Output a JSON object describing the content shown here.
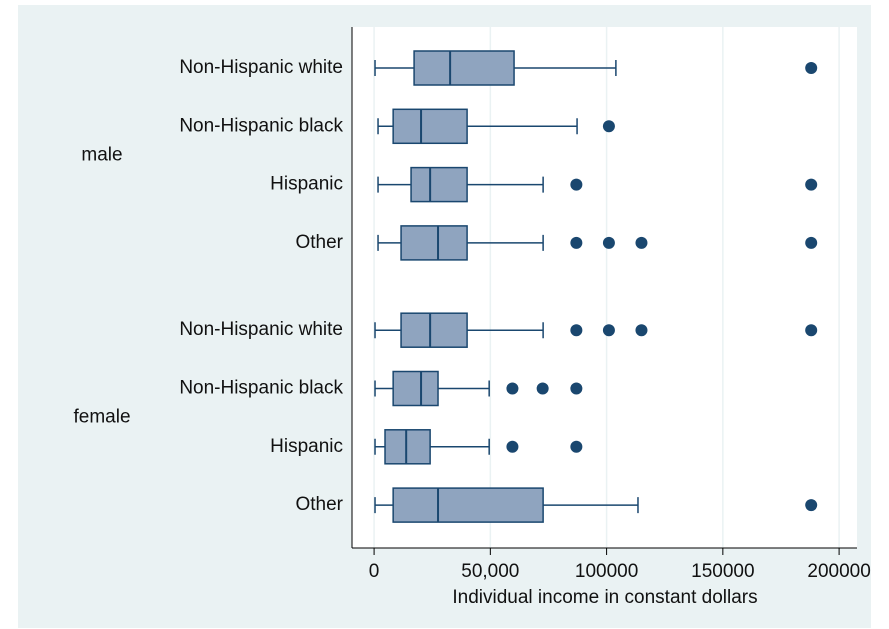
{
  "chart_data": {
    "type": "box",
    "orientation": "horizontal",
    "xlabel": "Individual income in constant dollars",
    "xlim": [
      -9500,
      207700
    ],
    "xticks": [
      0,
      {
        "value": 50000,
        "label": "50,000"
      },
      100000,
      150000,
      200000
    ],
    "grid": true,
    "color": "#8fa4bf",
    "edge_color": "#1a476f",
    "groups": [
      {
        "name": "male",
        "rows": [
          {
            "label": "Non-Hispanic white",
            "whisker_low": 400,
            "q1": 17200,
            "median": 32700,
            "q3": 60200,
            "whisker_high": 104000,
            "outliers": [
              188000
            ]
          },
          {
            "label": "Non-Hispanic black",
            "whisker_low": 1700,
            "q1": 8200,
            "median": 20200,
            "q3": 40000,
            "whisker_high": 87300,
            "outliers": [
              101000
            ]
          },
          {
            "label": "Hispanic",
            "whisker_low": 1700,
            "q1": 15900,
            "median": 24100,
            "q3": 40000,
            "whisker_high": 72700,
            "outliers": [
              87000,
              188000
            ]
          },
          {
            "label": "Other",
            "whisker_low": 1700,
            "q1": 11600,
            "median": 27500,
            "q3": 40000,
            "whisker_high": 72700,
            "outliers": [
              87000,
              101000,
              115000,
              188000
            ]
          }
        ]
      },
      {
        "name": "female",
        "rows": [
          {
            "label": "Non-Hispanic white",
            "whisker_low": 400,
            "q1": 11600,
            "median": 24100,
            "q3": 40000,
            "whisker_high": 72700,
            "outliers": [
              87000,
              101000,
              115000,
              188000
            ]
          },
          {
            "label": "Non-Hispanic black",
            "whisker_low": 400,
            "q1": 8200,
            "median": 20200,
            "q3": 27500,
            "whisker_high": 49500,
            "outliers": [
              59500,
              72500,
              87000
            ]
          },
          {
            "label": "Hispanic",
            "whisker_low": 400,
            "q1": 4700,
            "median": 13800,
            "q3": 24100,
            "whisker_high": 49500,
            "outliers": [
              59500,
              87000
            ]
          },
          {
            "label": "Other",
            "whisker_low": 400,
            "q1": 8200,
            "median": 27500,
            "q3": 72700,
            "whisker_high": 113500,
            "outliers": [
              188000
            ]
          }
        ]
      }
    ]
  }
}
